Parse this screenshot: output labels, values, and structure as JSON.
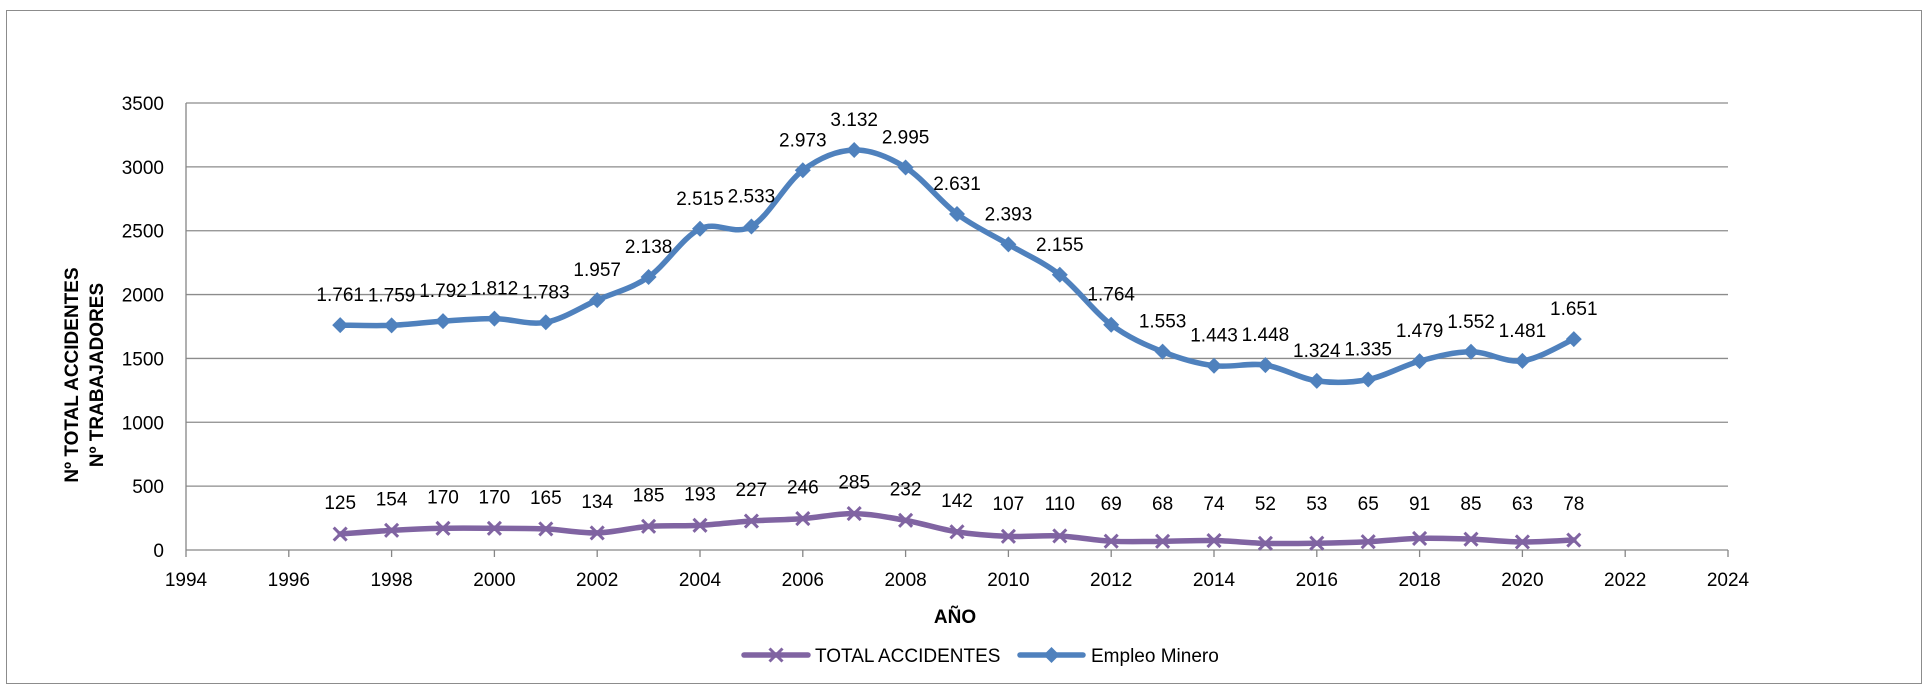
{
  "chart_data": {
    "type": "line",
    "xlabel": "AÑO",
    "ylabel_lines": [
      "Nº TOTAL ACCIDENTES",
      "Nº TRABAJADORES"
    ],
    "xlim": [
      1994,
      2024
    ],
    "ylim": [
      0,
      3500
    ],
    "x_ticks": [
      "1994",
      "1996",
      "1998",
      "2000",
      "2002",
      "2004",
      "2006",
      "2008",
      "2010",
      "2012",
      "2014",
      "2016",
      "2018",
      "2020",
      "2022",
      "2024"
    ],
    "y_ticks": [
      "0",
      "500",
      "1000",
      "1500",
      "2000",
      "2500",
      "3000",
      "3500"
    ],
    "grid": "horizontal",
    "legend_position": "bottom",
    "x": [
      1997,
      1998,
      1999,
      2000,
      2001,
      2002,
      2003,
      2004,
      2005,
      2006,
      2007,
      2008,
      2009,
      2010,
      2011,
      2012,
      2013,
      2014,
      2015,
      2016,
      2017,
      2018,
      2019,
      2020,
      2021
    ],
    "series": [
      {
        "name": "TOTAL ACCIDENTES",
        "color": "#8064a2",
        "marker": "x",
        "values": [
          125,
          154,
          170,
          170,
          165,
          134,
          185,
          193,
          227,
          246,
          285,
          232,
          142,
          107,
          110,
          69,
          68,
          74,
          52,
          53,
          65,
          91,
          85,
          63,
          78
        ],
        "labels": [
          "125",
          "154",
          "170",
          "170",
          "165",
          "134",
          "185",
          "193",
          "227",
          "246",
          "285",
          "232",
          "142",
          "107",
          "110",
          "69",
          "68",
          "74",
          "52",
          "53",
          "65",
          "91",
          "85",
          "63",
          "78"
        ]
      },
      {
        "name": "Empleo Minero",
        "color": "#4f81bd",
        "marker": "diamond",
        "values": [
          1761,
          1759,
          1792,
          1812,
          1783,
          1957,
          2138,
          2515,
          2533,
          2973,
          3132,
          2995,
          2631,
          2393,
          2155,
          1764,
          1553,
          1443,
          1448,
          1324,
          1335,
          1479,
          1552,
          1481,
          1651
        ],
        "labels": [
          "1.761",
          "1.759",
          "1.792",
          "1.812",
          "1.783",
          "1.957",
          "2.138",
          "2.515",
          "2.533",
          "2.973",
          "3.132",
          "2.995",
          "2.631",
          "2.393",
          "2.155",
          "1.764",
          "1.553",
          "1.443",
          "1.448",
          "1.324",
          "1.335",
          "1.479",
          "1.552",
          "1.481",
          "1.651"
        ]
      }
    ]
  }
}
